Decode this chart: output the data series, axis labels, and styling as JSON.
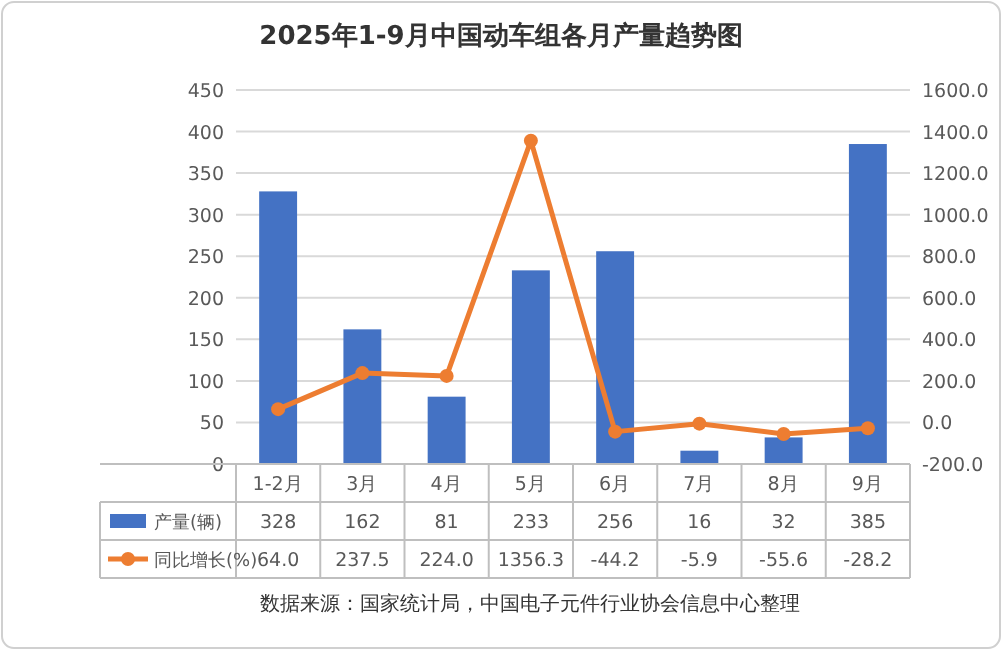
{
  "chart_data": {
    "type": "bar",
    "title": "2025年1-9月中国动车组各月产量趋势图",
    "categories": [
      "1-2月",
      "3月",
      "4月",
      "5月",
      "6月",
      "7月",
      "8月",
      "9月"
    ],
    "series": [
      {
        "name": "产量(辆)",
        "color": "#4472c4",
        "values": [
          328,
          162,
          81,
          233,
          256,
          16,
          32,
          385
        ],
        "value_labels": [
          "328",
          "162",
          "81",
          "233",
          "256",
          "16",
          "32",
          "385"
        ]
      },
      {
        "name": "同比增长(%)",
        "type": "line",
        "axis": "y2",
        "marker": "circle",
        "color": "#ed7d31",
        "values": [
          64.0,
          237.5,
          224.0,
          1356.3,
          -44.2,
          -5.9,
          -55.6,
          -28.2
        ],
        "value_labels": [
          "64.0",
          "237.5",
          "224.0",
          "1356.3",
          "-44.2",
          "-5.9",
          "-55.6",
          "-28.2"
        ]
      }
    ],
    "ylim": [
      0,
      450
    ],
    "yticks": [
      0,
      50,
      100,
      150,
      200,
      250,
      300,
      350,
      400,
      450
    ],
    "y2lim": [
      -200,
      1600
    ],
    "y2ticks": [
      {
        "value": -200,
        "label": "-200.0"
      },
      {
        "value": 0,
        "label": "0.0"
      },
      {
        "value": 200,
        "label": "200.0"
      },
      {
        "value": 400,
        "label": "400.0"
      },
      {
        "value": 600,
        "label": "600.0"
      },
      {
        "value": 800,
        "label": "800.0"
      },
      {
        "value": 1000,
        "label": "1000.0"
      },
      {
        "value": 1200,
        "label": "1200.0"
      },
      {
        "value": 1400,
        "label": "1400.0"
      },
      {
        "value": 1600,
        "label": "1600.0"
      }
    ],
    "grid": "y",
    "legend": "bottom",
    "annotations": [
      "数据来源：国家统计局，中国电子元件行业协会信息中心整理"
    ]
  }
}
